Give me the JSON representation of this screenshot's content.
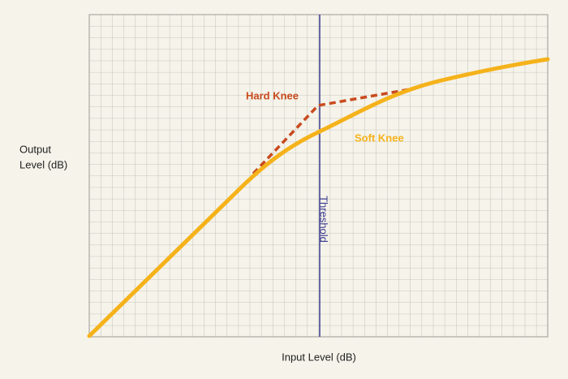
{
  "axis_labels": {
    "y": [
      "Output",
      "Level (dB)"
    ],
    "x": "Input Level (dB)"
  },
  "annotations": {
    "hard_knee": "Hard Knee",
    "soft_knee": "Soft Knee",
    "threshold": "Threshold"
  }
}
